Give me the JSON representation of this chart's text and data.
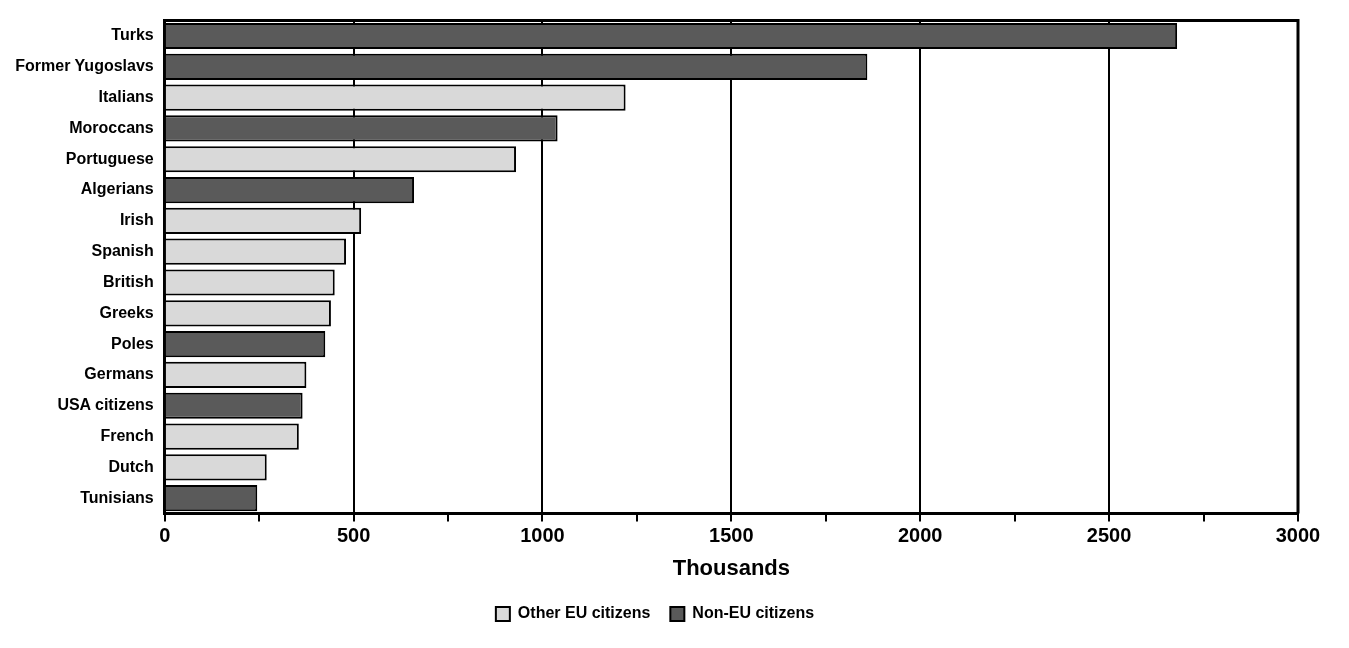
{
  "chart_data": {
    "type": "bar",
    "orientation": "horizontal",
    "stacked": true,
    "categories": [
      "Turks",
      "Former Yugoslavs",
      "Italians",
      "Moroccans",
      "Portuguese",
      "Algerians",
      "Irish",
      "Spanish",
      "British",
      "Greeks",
      "Poles",
      "Germans",
      "USA citizens",
      "French",
      "Dutch",
      "Tunisians"
    ],
    "series": [
      {
        "name": "Other EU citizens",
        "color": "#d9d9d9",
        "values": [
          null,
          null,
          1220,
          null,
          930,
          null,
          520,
          480,
          450,
          440,
          null,
          375,
          null,
          355,
          270,
          null
        ]
      },
      {
        "name": "Non-EU citizens",
        "color": "#5a5a5a",
        "values": [
          2680,
          1860,
          null,
          1040,
          null,
          660,
          null,
          null,
          null,
          null,
          425,
          null,
          365,
          null,
          null,
          245
        ]
      }
    ],
    "xlabel": "Thousands",
    "xlim": [
      0,
      3000
    ],
    "xticks": [
      0,
      {
        "value": 250,
        "label": null
      },
      500,
      {
        "value": 750,
        "label": null
      },
      1000,
      {
        "value": 1250,
        "label": null
      },
      1500,
      {
        "value": 1750,
        "label": null
      },
      2000,
      {
        "value": 2250,
        "label": null
      },
      2500,
      {
        "value": 2750,
        "label": null
      },
      3000
    ],
    "grid": "x",
    "legend": "bottom"
  }
}
